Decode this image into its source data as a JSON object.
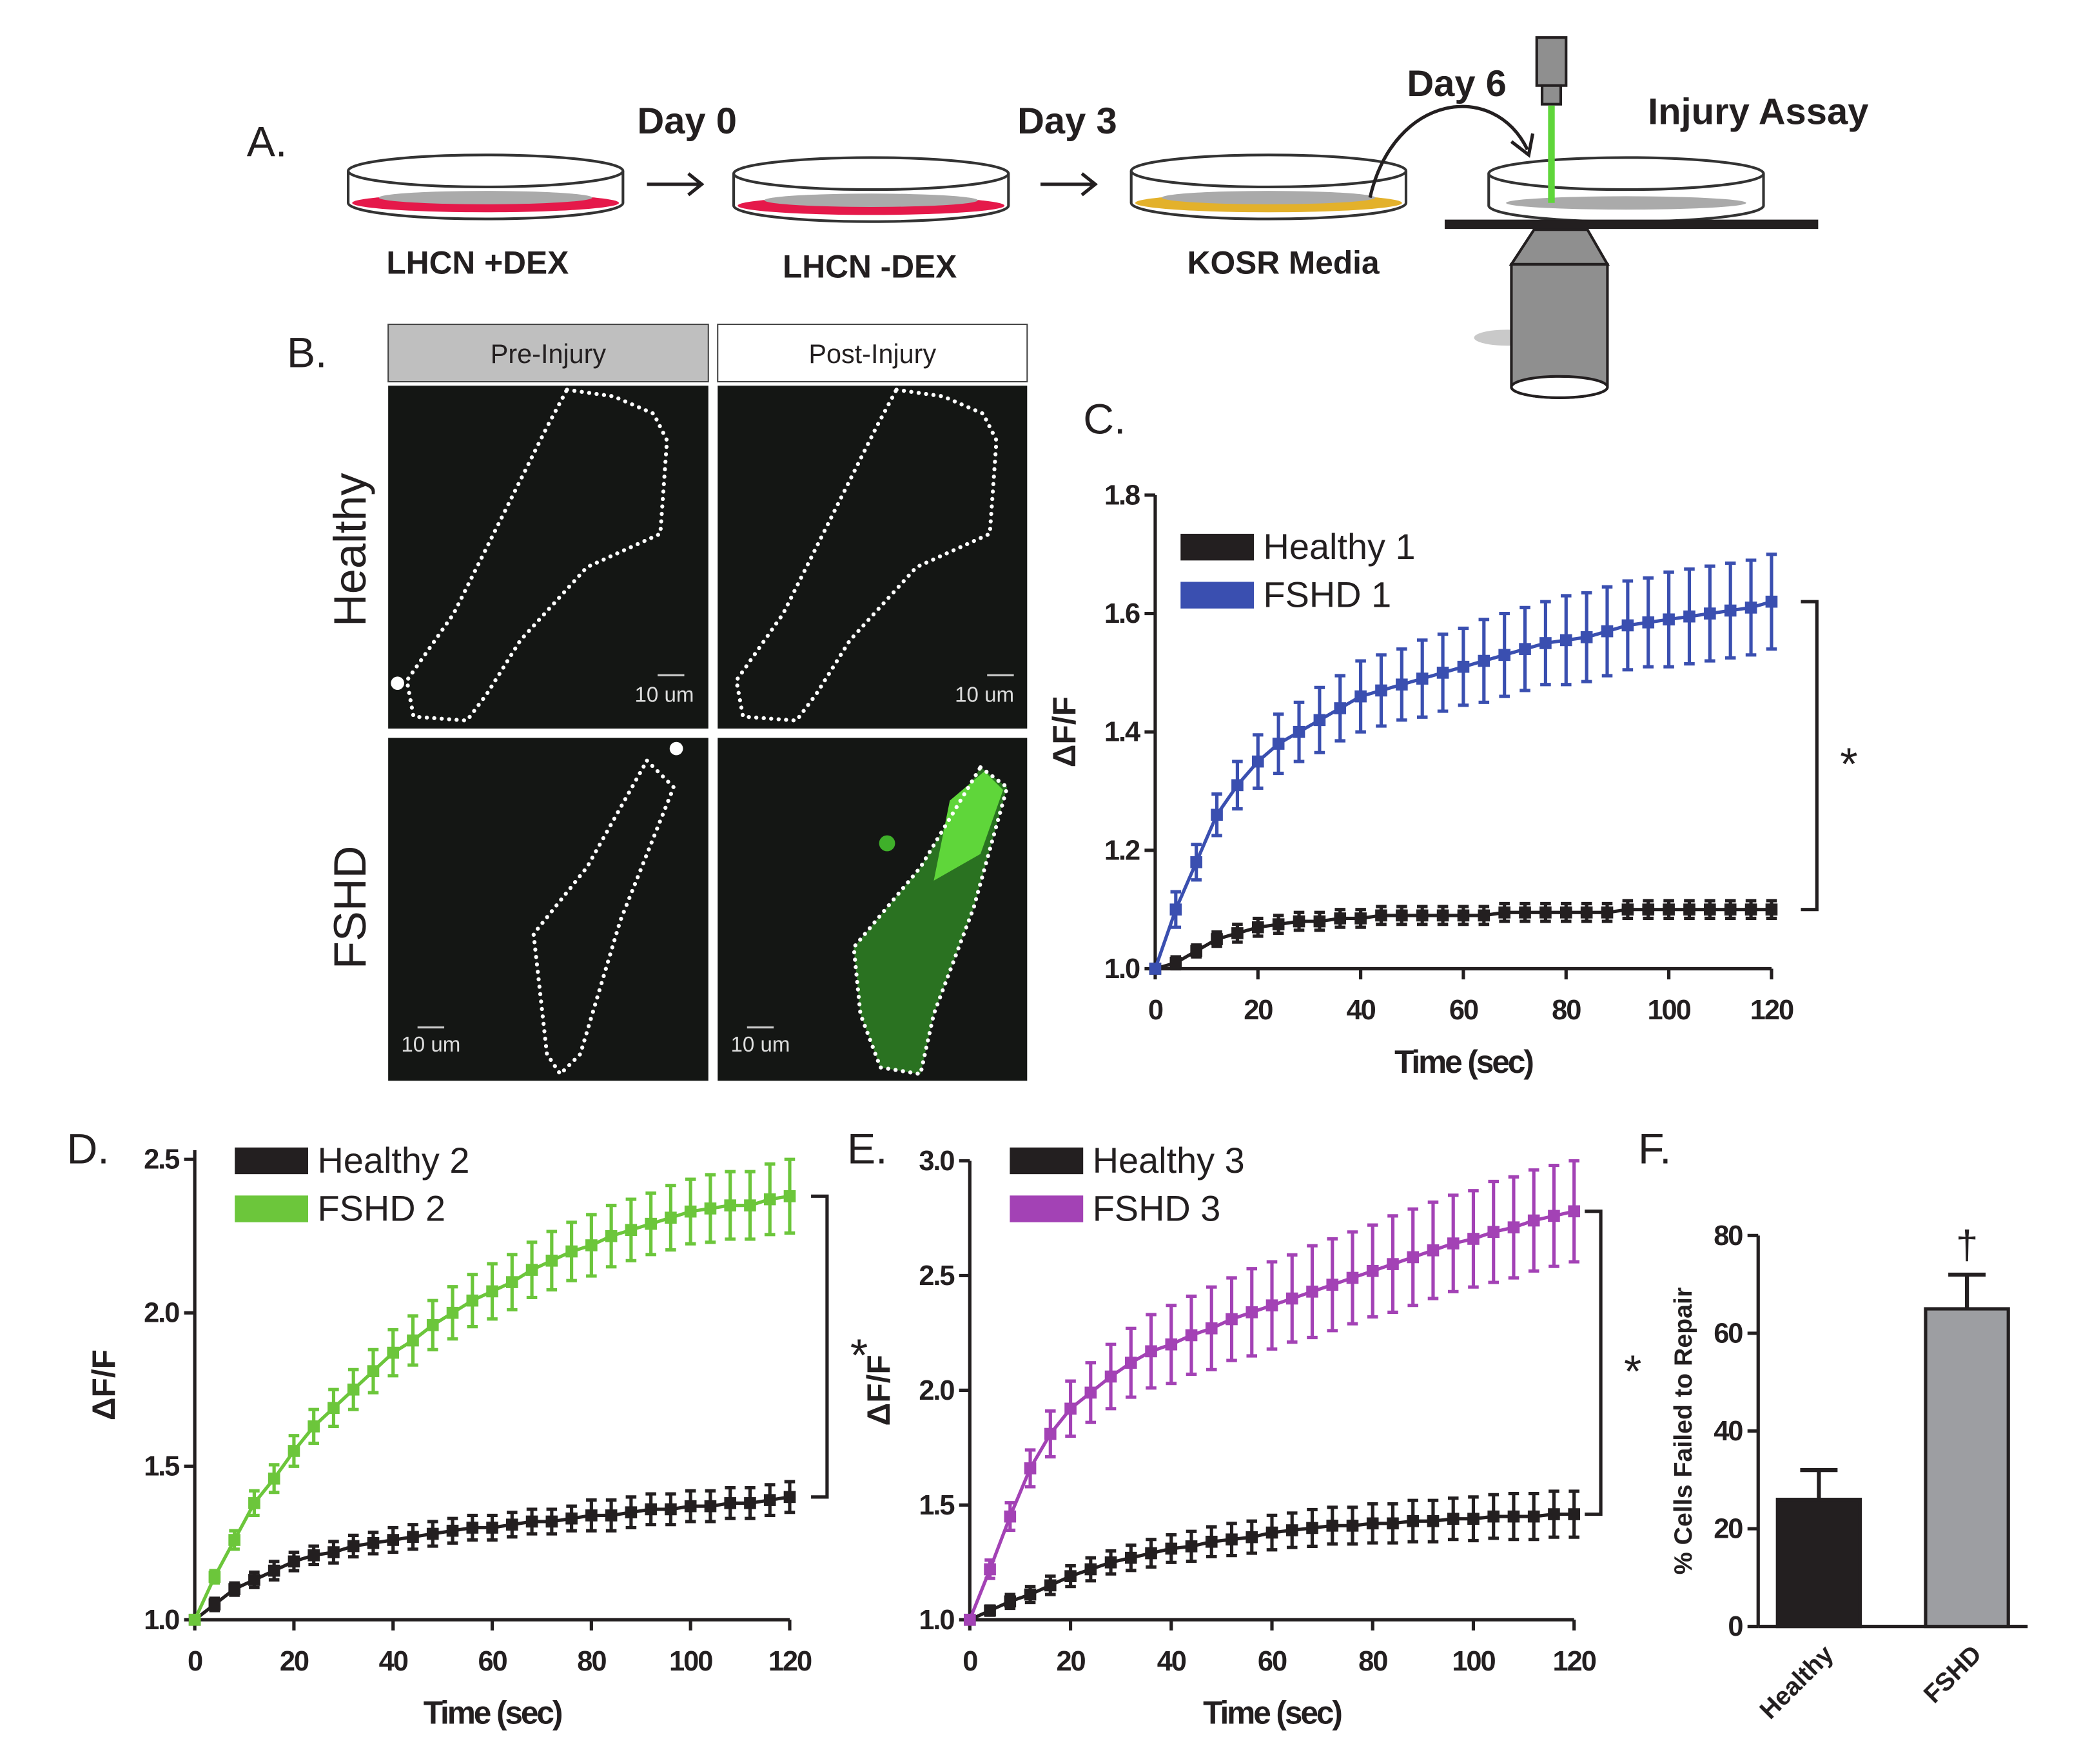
{
  "panel_a": {
    "label": "A.",
    "days": [
      "Day 0",
      "Day 3",
      "Day 6"
    ],
    "assay": "Injury Assay",
    "dishes": [
      "LHCN +DEX",
      "LHCN -DEX",
      "KOSR Media"
    ]
  },
  "panel_b": {
    "label": "B.",
    "columns": [
      "Pre-Injury",
      "Post-Injury"
    ],
    "rows": [
      "Healthy",
      "FSHD"
    ],
    "scale": [
      "10 um",
      "10 um",
      "10 um",
      "10 um"
    ]
  },
  "chart_data": [
    {
      "type": "line",
      "panel": "C.",
      "xlabel": "Time (sec)",
      "ylabel": "ΔF/F",
      "annotation": "*",
      "x": [
        0,
        4,
        8,
        12,
        16,
        20,
        24,
        28,
        32,
        36,
        40,
        44,
        48,
        52,
        56,
        60,
        64,
        68,
        72,
        76,
        80,
        84,
        88,
        92,
        96,
        100,
        104,
        108,
        112,
        116,
        120
      ],
      "xlim": [
        0,
        120
      ],
      "xticks": [
        0,
        20,
        40,
        60,
        80,
        100,
        120
      ],
      "ylim": [
        1,
        1.8
      ],
      "yticks": [
        {
          "value": 1,
          "label": "1.0"
        },
        1.2,
        1.4,
        1.6,
        1.8
      ],
      "series": [
        {
          "name": "Healthy 1",
          "color": "#231f20",
          "values": [
            1,
            1.01,
            1.03,
            1.05,
            1.06,
            1.07,
            1.075,
            1.08,
            1.08,
            1.085,
            1.085,
            1.09,
            1.09,
            1.09,
            1.09,
            1.09,
            1.09,
            1.095,
            1.095,
            1.095,
            1.095,
            1.095,
            1.095,
            1.1,
            1.1,
            1.1,
            1.1,
            1.1,
            1.1,
            1.1,
            1.1
          ],
          "errors": [
            0,
            0.01,
            0.01,
            0.012,
            0.015,
            0.015,
            0.015,
            0.015,
            0.015,
            0.015,
            0.015,
            0.015,
            0.015,
            0.015,
            0.015,
            0.015,
            0.015,
            0.015,
            0.015,
            0.015,
            0.015,
            0.015,
            0.015,
            0.015,
            0.015,
            0.015,
            0.015,
            0.015,
            0.015,
            0.015,
            0.015
          ]
        },
        {
          "name": "FSHD 1",
          "color": "#3a4fb0",
          "values": [
            1,
            1.1,
            1.18,
            1.26,
            1.31,
            1.35,
            1.38,
            1.4,
            1.42,
            1.44,
            1.46,
            1.47,
            1.48,
            1.49,
            1.5,
            1.51,
            1.52,
            1.53,
            1.54,
            1.55,
            1.555,
            1.56,
            1.57,
            1.58,
            1.585,
            1.59,
            1.595,
            1.6,
            1.605,
            1.61,
            1.62
          ],
          "errors": [
            0,
            0.03,
            0.03,
            0.035,
            0.04,
            0.045,
            0.05,
            0.05,
            0.055,
            0.055,
            0.06,
            0.06,
            0.06,
            0.065,
            0.065,
            0.065,
            0.07,
            0.07,
            0.07,
            0.07,
            0.075,
            0.075,
            0.075,
            0.075,
            0.075,
            0.08,
            0.08,
            0.08,
            0.08,
            0.08,
            0.08
          ]
        }
      ]
    },
    {
      "type": "line",
      "panel": "D.",
      "xlabel": "Time (sec)",
      "ylabel": "ΔF/F",
      "annotation": "*",
      "x": [
        0,
        4,
        8,
        12,
        16,
        20,
        24,
        28,
        32,
        36,
        40,
        44,
        48,
        52,
        56,
        60,
        64,
        68,
        72,
        76,
        80,
        84,
        88,
        92,
        96,
        100,
        104,
        108,
        112,
        116,
        120
      ],
      "xlim": [
        0,
        120
      ],
      "xticks": [
        0,
        20,
        40,
        60,
        80,
        100,
        120
      ],
      "ylim": [
        1,
        2.53
      ],
      "yticks": [
        {
          "value": 1,
          "label": "1.0"
        },
        1.5,
        {
          "value": 2,
          "label": "2.0"
        },
        2.5
      ],
      "series": [
        {
          "name": "Healthy 2",
          "color": "#231f20",
          "values": [
            1,
            1.05,
            1.1,
            1.13,
            1.16,
            1.19,
            1.21,
            1.22,
            1.24,
            1.25,
            1.26,
            1.27,
            1.28,
            1.29,
            1.3,
            1.3,
            1.31,
            1.32,
            1.32,
            1.33,
            1.34,
            1.34,
            1.35,
            1.36,
            1.36,
            1.37,
            1.37,
            1.38,
            1.38,
            1.39,
            1.4
          ],
          "errors": [
            0,
            0.02,
            0.02,
            0.025,
            0.03,
            0.03,
            0.03,
            0.035,
            0.035,
            0.035,
            0.04,
            0.04,
            0.04,
            0.04,
            0.04,
            0.04,
            0.04,
            0.04,
            0.04,
            0.04,
            0.05,
            0.05,
            0.05,
            0.05,
            0.05,
            0.05,
            0.05,
            0.05,
            0.05,
            0.05,
            0.05
          ]
        },
        {
          "name": "FSHD 2",
          "color": "#6cc63b",
          "values": [
            1,
            1.14,
            1.26,
            1.38,
            1.46,
            1.55,
            1.63,
            1.69,
            1.75,
            1.81,
            1.87,
            1.91,
            1.96,
            2,
            2.04,
            2.07,
            2.1,
            2.14,
            2.17,
            2.2,
            2.22,
            2.25,
            2.27,
            2.29,
            2.31,
            2.33,
            2.34,
            2.35,
            2.35,
            2.37,
            2.38
          ],
          "errors": [
            0,
            0.02,
            0.03,
            0.04,
            0.045,
            0.05,
            0.055,
            0.06,
            0.065,
            0.07,
            0.075,
            0.08,
            0.08,
            0.085,
            0.085,
            0.09,
            0.09,
            0.09,
            0.095,
            0.095,
            0.1,
            0.1,
            0.1,
            0.1,
            0.105,
            0.105,
            0.11,
            0.11,
            0.11,
            0.115,
            0.12
          ]
        }
      ]
    },
    {
      "type": "line",
      "panel": "E.",
      "xlabel": "Time (sec)",
      "ylabel": "ΔF/F",
      "annotation": "*",
      "x": [
        0,
        4,
        8,
        12,
        16,
        20,
        24,
        28,
        32,
        36,
        40,
        44,
        48,
        52,
        56,
        60,
        64,
        68,
        72,
        76,
        80,
        84,
        88,
        92,
        96,
        100,
        104,
        108,
        112,
        116,
        120
      ],
      "xlim": [
        0,
        120
      ],
      "xticks": [
        0,
        20,
        40,
        60,
        80,
        100,
        120
      ],
      "ylim": [
        1,
        3
      ],
      "yticks": [
        {
          "value": 1,
          "label": "1.0"
        },
        1.5,
        {
          "value": 2,
          "label": "2.0"
        },
        2.5,
        {
          "value": 3,
          "label": "3.0"
        }
      ],
      "series": [
        {
          "name": "Healthy 3",
          "color": "#231f20",
          "values": [
            1,
            1.04,
            1.08,
            1.11,
            1.15,
            1.19,
            1.22,
            1.25,
            1.27,
            1.29,
            1.31,
            1.32,
            1.34,
            1.35,
            1.36,
            1.38,
            1.39,
            1.4,
            1.41,
            1.41,
            1.42,
            1.42,
            1.43,
            1.43,
            1.44,
            1.44,
            1.45,
            1.45,
            1.45,
            1.46,
            1.46
          ],
          "errors": [
            0,
            0.02,
            0.03,
            0.035,
            0.04,
            0.045,
            0.05,
            0.05,
            0.055,
            0.06,
            0.06,
            0.065,
            0.065,
            0.07,
            0.07,
            0.075,
            0.075,
            0.08,
            0.08,
            0.08,
            0.085,
            0.085,
            0.09,
            0.09,
            0.09,
            0.095,
            0.095,
            0.1,
            0.1,
            0.1,
            0.1
          ]
        },
        {
          "name": "FSHD 3",
          "color": "#a342b5",
          "values": [
            1,
            1.22,
            1.45,
            1.66,
            1.81,
            1.92,
            1.99,
            2.06,
            2.12,
            2.17,
            2.2,
            2.24,
            2.27,
            2.31,
            2.34,
            2.37,
            2.4,
            2.43,
            2.46,
            2.49,
            2.52,
            2.55,
            2.58,
            2.61,
            2.64,
            2.66,
            2.69,
            2.71,
            2.74,
            2.76,
            2.78
          ],
          "errors": [
            0,
            0.04,
            0.06,
            0.08,
            0.1,
            0.12,
            0.13,
            0.14,
            0.15,
            0.16,
            0.17,
            0.17,
            0.18,
            0.18,
            0.19,
            0.19,
            0.19,
            0.2,
            0.2,
            0.2,
            0.2,
            0.21,
            0.21,
            0.21,
            0.21,
            0.21,
            0.22,
            0.22,
            0.22,
            0.22,
            0.22
          ]
        }
      ]
    },
    {
      "type": "bar",
      "panel": "F.",
      "ylabel": "% Cells Failed to  Repair",
      "annotation": "†",
      "categories": [
        "Healthy",
        "FSHD"
      ],
      "values": [
        26,
        65
      ],
      "errors": [
        6,
        7
      ],
      "colors": [
        "#231f20",
        "#9d9ea2"
      ],
      "ylim": [
        0,
        80
      ],
      "yticks": [
        0,
        20,
        40,
        60,
        80
      ]
    }
  ]
}
